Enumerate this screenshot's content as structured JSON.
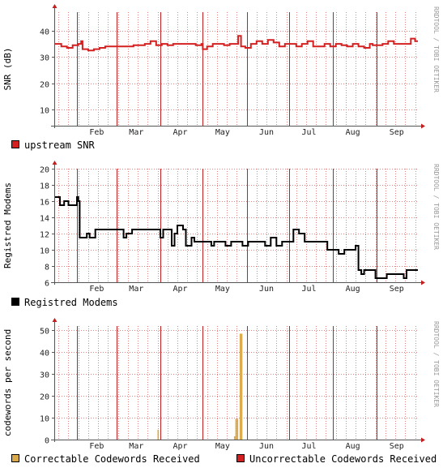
{
  "credit_text": "RRDTOOL / TOBI OETIKER",
  "chart_data": [
    {
      "type": "line",
      "ylabel": "SNR (dB)",
      "ylim": [
        4,
        47
      ],
      "yticks": [
        10,
        20,
        30,
        40
      ],
      "xlim": [
        "2009-01-16",
        "2009-09-30"
      ],
      "month_ticks": [
        "Feb",
        "Mar",
        "Apr",
        "May",
        "Jun",
        "Jul",
        "Aug",
        "Sep"
      ],
      "grid": true,
      "legend_position": "bottom-left",
      "series": [
        {
          "name": "upstream SNR",
          "color": "#d42020",
          "x": [
            "2009-01-16",
            "2009-01-21",
            "2009-01-25",
            "2009-01-29",
            "2009-02-02",
            "2009-02-04",
            "2009-02-05",
            "2009-02-09",
            "2009-02-13",
            "2009-02-17",
            "2009-02-21",
            "2009-02-25",
            "2009-03-01",
            "2009-03-05",
            "2009-03-09",
            "2009-03-13",
            "2009-03-17",
            "2009-03-21",
            "2009-03-25",
            "2009-03-29",
            "2009-04-02",
            "2009-04-06",
            "2009-04-10",
            "2009-04-14",
            "2009-04-18",
            "2009-04-22",
            "2009-04-26",
            "2009-04-30",
            "2009-05-01",
            "2009-05-04",
            "2009-05-08",
            "2009-05-12",
            "2009-05-16",
            "2009-05-20",
            "2009-05-24",
            "2009-05-26",
            "2009-05-28",
            "2009-05-31",
            "2009-06-04",
            "2009-06-08",
            "2009-06-12",
            "2009-06-16",
            "2009-06-20",
            "2009-06-24",
            "2009-06-28",
            "2009-07-02",
            "2009-07-06",
            "2009-07-10",
            "2009-07-14",
            "2009-07-18",
            "2009-07-22",
            "2009-07-26",
            "2009-07-30",
            "2009-08-03",
            "2009-08-07",
            "2009-08-11",
            "2009-08-15",
            "2009-08-19",
            "2009-08-23",
            "2009-08-27",
            "2009-08-29",
            "2009-09-01",
            "2009-09-05",
            "2009-09-09",
            "2009-09-13",
            "2009-09-17",
            "2009-09-21",
            "2009-09-25",
            "2009-09-28"
          ],
          "y": [
            35,
            34,
            33.5,
            34.5,
            35,
            36,
            33,
            32.5,
            33,
            33.5,
            34,
            34,
            34,
            34,
            34,
            34.5,
            34.5,
            35,
            36,
            34.5,
            35,
            34.5,
            35,
            35,
            35,
            35,
            34.5,
            35,
            33,
            34,
            35,
            35,
            34.5,
            35,
            35,
            38,
            34,
            33.5,
            35,
            36,
            35,
            36.5,
            35.5,
            34,
            35,
            35,
            34,
            35,
            36,
            34,
            34,
            35,
            34,
            35,
            34.5,
            34,
            35,
            34,
            33.5,
            35,
            34.5,
            34.5,
            35,
            36,
            35,
            35,
            35,
            37,
            36
          ]
        }
      ]
    },
    {
      "type": "line",
      "ylabel": "Registred Modems",
      "ylim": [
        6,
        20
      ],
      "yticks": [
        6,
        8,
        10,
        12,
        14,
        16,
        18,
        20
      ],
      "xlim": [
        "2009-01-16",
        "2009-09-30"
      ],
      "month_ticks": [
        "Feb",
        "Mar",
        "Apr",
        "May",
        "Jun",
        "Jul",
        "Aug",
        "Sep"
      ],
      "grid": true,
      "legend_position": "bottom-left",
      "series": [
        {
          "name": "Registred Modems",
          "color": "#000000",
          "x": [
            "2009-01-16",
            "2009-01-19",
            "2009-01-20",
            "2009-01-23",
            "2009-01-26",
            "2009-01-30",
            "2009-02-01",
            "2009-02-02",
            "2009-02-03",
            "2009-02-05",
            "2009-02-07",
            "2009-02-08",
            "2009-02-10",
            "2009-02-14",
            "2009-02-18",
            "2009-02-22",
            "2009-02-26",
            "2009-03-02",
            "2009-03-06",
            "2009-03-08",
            "2009-03-12",
            "2009-03-16",
            "2009-03-20",
            "2009-03-24",
            "2009-03-28",
            "2009-04-01",
            "2009-04-03",
            "2009-04-05",
            "2009-04-09",
            "2009-04-11",
            "2009-04-13",
            "2009-04-17",
            "2009-04-19",
            "2009-04-23",
            "2009-04-25",
            "2009-04-29",
            "2009-05-01",
            "2009-05-03",
            "2009-05-07",
            "2009-05-09",
            "2009-05-13",
            "2009-05-17",
            "2009-05-21",
            "2009-05-25",
            "2009-05-29",
            "2009-06-02",
            "2009-06-06",
            "2009-06-10",
            "2009-06-14",
            "2009-06-18",
            "2009-06-22",
            "2009-06-26",
            "2009-06-30",
            "2009-07-04",
            "2009-07-08",
            "2009-07-12",
            "2009-07-16",
            "2009-07-20",
            "2009-07-24",
            "2009-07-28",
            "2009-08-01",
            "2009-08-05",
            "2009-08-09",
            "2009-08-13",
            "2009-08-17",
            "2009-08-19",
            "2009-08-21",
            "2009-08-23",
            "2009-08-27",
            "2009-08-31",
            "2009-09-04",
            "2009-09-08",
            "2009-09-12",
            "2009-09-16",
            "2009-09-20",
            "2009-09-22",
            "2009-09-24",
            "2009-09-28"
          ],
          "y": [
            16.5,
            16.5,
            15.5,
            16,
            15.5,
            15.5,
            16.5,
            16,
            11.5,
            11.5,
            11.5,
            12,
            11.5,
            12.5,
            12.5,
            12.5,
            12.5,
            12.5,
            11.5,
            12,
            12.5,
            12.5,
            12.5,
            12.5,
            12.5,
            11.5,
            12.5,
            12.5,
            10.5,
            12,
            13,
            12.5,
            10.5,
            11.5,
            11,
            11,
            11,
            11,
            10.5,
            11,
            11,
            10.5,
            11,
            11,
            10.5,
            11,
            11,
            11,
            10.5,
            11.5,
            10.5,
            11,
            11,
            12.5,
            12,
            11,
            11,
            11,
            11,
            10,
            10,
            9.5,
            10,
            10,
            10.5,
            7.5,
            7,
            7.5,
            7.5,
            6.5,
            6.5,
            7,
            7,
            7,
            6.5,
            7.5,
            7.5,
            7.5
          ]
        }
      ]
    },
    {
      "type": "bar",
      "ylabel": "codewords per second",
      "ylim": [
        0,
        52
      ],
      "yticks": [
        0,
        10,
        20,
        30,
        40,
        50
      ],
      "xlim": [
        "2009-01-16",
        "2009-09-30"
      ],
      "month_ticks": [
        "Feb",
        "Mar",
        "Apr",
        "May",
        "Jun",
        "Jul",
        "Aug",
        "Sep"
      ],
      "grid": true,
      "legend_position": "bottom",
      "series": [
        {
          "name": "Correctable Codewords Received",
          "color": "#d9a94a",
          "x": [
            "2009-03-30",
            "2009-05-23",
            "2009-05-24",
            "2009-05-25",
            "2009-05-26",
            "2009-05-27",
            "2009-05-28",
            "2009-05-29"
          ],
          "y": [
            4.5,
            1.5,
            9.5,
            9.5,
            0,
            48.5,
            48.5,
            0
          ]
        },
        {
          "name": "Uncorrectable Codewords Received",
          "color": "#d42020",
          "x": [],
          "y": []
        }
      ]
    }
  ]
}
